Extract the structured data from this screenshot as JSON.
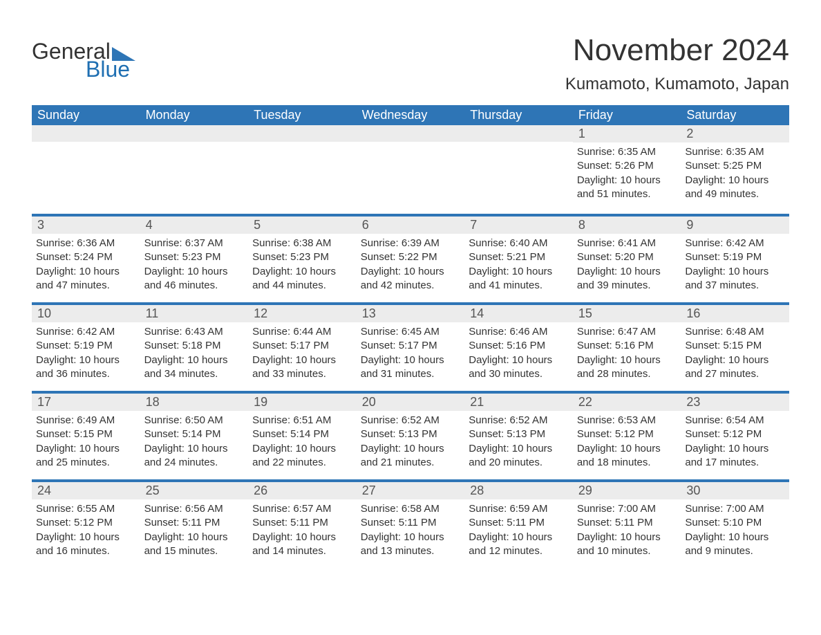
{
  "logo": {
    "word1": "General",
    "word2": "Blue",
    "shape_color": "#2e75b6"
  },
  "header": {
    "month_title": "November 2024",
    "location": "Kumamoto, Kumamoto, Japan"
  },
  "calendar": {
    "header_bg": "#2e75b6",
    "header_fg": "#ffffff",
    "rule_color": "#2e75b6",
    "daynum_bg": "#ececec",
    "text_color": "#333333",
    "day_headers": [
      "Sunday",
      "Monday",
      "Tuesday",
      "Wednesday",
      "Thursday",
      "Friday",
      "Saturday"
    ],
    "weeks": [
      [
        null,
        null,
        null,
        null,
        null,
        {
          "n": "1",
          "sunrise": "Sunrise: 6:35 AM",
          "sunset": "Sunset: 5:26 PM",
          "daylight": "Daylight: 10 hours and 51 minutes."
        },
        {
          "n": "2",
          "sunrise": "Sunrise: 6:35 AM",
          "sunset": "Sunset: 5:25 PM",
          "daylight": "Daylight: 10 hours and 49 minutes."
        }
      ],
      [
        {
          "n": "3",
          "sunrise": "Sunrise: 6:36 AM",
          "sunset": "Sunset: 5:24 PM",
          "daylight": "Daylight: 10 hours and 47 minutes."
        },
        {
          "n": "4",
          "sunrise": "Sunrise: 6:37 AM",
          "sunset": "Sunset: 5:23 PM",
          "daylight": "Daylight: 10 hours and 46 minutes."
        },
        {
          "n": "5",
          "sunrise": "Sunrise: 6:38 AM",
          "sunset": "Sunset: 5:23 PM",
          "daylight": "Daylight: 10 hours and 44 minutes."
        },
        {
          "n": "6",
          "sunrise": "Sunrise: 6:39 AM",
          "sunset": "Sunset: 5:22 PM",
          "daylight": "Daylight: 10 hours and 42 minutes."
        },
        {
          "n": "7",
          "sunrise": "Sunrise: 6:40 AM",
          "sunset": "Sunset: 5:21 PM",
          "daylight": "Daylight: 10 hours and 41 minutes."
        },
        {
          "n": "8",
          "sunrise": "Sunrise: 6:41 AM",
          "sunset": "Sunset: 5:20 PM",
          "daylight": "Daylight: 10 hours and 39 minutes."
        },
        {
          "n": "9",
          "sunrise": "Sunrise: 6:42 AM",
          "sunset": "Sunset: 5:19 PM",
          "daylight": "Daylight: 10 hours and 37 minutes."
        }
      ],
      [
        {
          "n": "10",
          "sunrise": "Sunrise: 6:42 AM",
          "sunset": "Sunset: 5:19 PM",
          "daylight": "Daylight: 10 hours and 36 minutes."
        },
        {
          "n": "11",
          "sunrise": "Sunrise: 6:43 AM",
          "sunset": "Sunset: 5:18 PM",
          "daylight": "Daylight: 10 hours and 34 minutes."
        },
        {
          "n": "12",
          "sunrise": "Sunrise: 6:44 AM",
          "sunset": "Sunset: 5:17 PM",
          "daylight": "Daylight: 10 hours and 33 minutes."
        },
        {
          "n": "13",
          "sunrise": "Sunrise: 6:45 AM",
          "sunset": "Sunset: 5:17 PM",
          "daylight": "Daylight: 10 hours and 31 minutes."
        },
        {
          "n": "14",
          "sunrise": "Sunrise: 6:46 AM",
          "sunset": "Sunset: 5:16 PM",
          "daylight": "Daylight: 10 hours and 30 minutes."
        },
        {
          "n": "15",
          "sunrise": "Sunrise: 6:47 AM",
          "sunset": "Sunset: 5:16 PM",
          "daylight": "Daylight: 10 hours and 28 minutes."
        },
        {
          "n": "16",
          "sunrise": "Sunrise: 6:48 AM",
          "sunset": "Sunset: 5:15 PM",
          "daylight": "Daylight: 10 hours and 27 minutes."
        }
      ],
      [
        {
          "n": "17",
          "sunrise": "Sunrise: 6:49 AM",
          "sunset": "Sunset: 5:15 PM",
          "daylight": "Daylight: 10 hours and 25 minutes."
        },
        {
          "n": "18",
          "sunrise": "Sunrise: 6:50 AM",
          "sunset": "Sunset: 5:14 PM",
          "daylight": "Daylight: 10 hours and 24 minutes."
        },
        {
          "n": "19",
          "sunrise": "Sunrise: 6:51 AM",
          "sunset": "Sunset: 5:14 PM",
          "daylight": "Daylight: 10 hours and 22 minutes."
        },
        {
          "n": "20",
          "sunrise": "Sunrise: 6:52 AM",
          "sunset": "Sunset: 5:13 PM",
          "daylight": "Daylight: 10 hours and 21 minutes."
        },
        {
          "n": "21",
          "sunrise": "Sunrise: 6:52 AM",
          "sunset": "Sunset: 5:13 PM",
          "daylight": "Daylight: 10 hours and 20 minutes."
        },
        {
          "n": "22",
          "sunrise": "Sunrise: 6:53 AM",
          "sunset": "Sunset: 5:12 PM",
          "daylight": "Daylight: 10 hours and 18 minutes."
        },
        {
          "n": "23",
          "sunrise": "Sunrise: 6:54 AM",
          "sunset": "Sunset: 5:12 PM",
          "daylight": "Daylight: 10 hours and 17 minutes."
        }
      ],
      [
        {
          "n": "24",
          "sunrise": "Sunrise: 6:55 AM",
          "sunset": "Sunset: 5:12 PM",
          "daylight": "Daylight: 10 hours and 16 minutes."
        },
        {
          "n": "25",
          "sunrise": "Sunrise: 6:56 AM",
          "sunset": "Sunset: 5:11 PM",
          "daylight": "Daylight: 10 hours and 15 minutes."
        },
        {
          "n": "26",
          "sunrise": "Sunrise: 6:57 AM",
          "sunset": "Sunset: 5:11 PM",
          "daylight": "Daylight: 10 hours and 14 minutes."
        },
        {
          "n": "27",
          "sunrise": "Sunrise: 6:58 AM",
          "sunset": "Sunset: 5:11 PM",
          "daylight": "Daylight: 10 hours and 13 minutes."
        },
        {
          "n": "28",
          "sunrise": "Sunrise: 6:59 AM",
          "sunset": "Sunset: 5:11 PM",
          "daylight": "Daylight: 10 hours and 12 minutes."
        },
        {
          "n": "29",
          "sunrise": "Sunrise: 7:00 AM",
          "sunset": "Sunset: 5:11 PM",
          "daylight": "Daylight: 10 hours and 10 minutes."
        },
        {
          "n": "30",
          "sunrise": "Sunrise: 7:00 AM",
          "sunset": "Sunset: 5:10 PM",
          "daylight": "Daylight: 10 hours and 9 minutes."
        }
      ]
    ]
  }
}
